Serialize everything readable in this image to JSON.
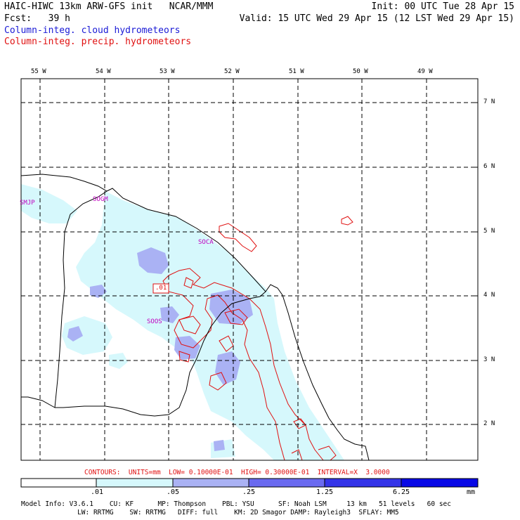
{
  "header": {
    "title": "HAIC-HIWC 13km ARW-GFS init   NCAR/MMM",
    "init": "Init: 00 UTC Tue 28 Apr 15",
    "fcst": "Fcst:   39 h",
    "valid": "Valid: 15 UTC Wed 29 Apr 15 (12 LST Wed 29 Apr 15)",
    "field1": "Column-integ. cloud hydrometeors",
    "field2": "Column-integ. precip. hydrometeors",
    "field1_color": "#1a1ad6",
    "field2_color": "#e01010"
  },
  "map": {
    "lon_labels": [
      "55 W",
      "54 W",
      "53 W",
      "52 W",
      "51 W",
      "50 W",
      "49 W"
    ],
    "lat_labels": [
      "7 N",
      "6 N",
      "5 N",
      "4 N",
      "3 N",
      "2 N"
    ],
    "stations": [
      "SMJP",
      "SOGM",
      "SOCA",
      "SOOS"
    ],
    "station_color": "#c000c0",
    "contour_label": ".01",
    "coast_color": "#000000",
    "grid_style": "dashed"
  },
  "contours_line": "CONTOURS:  UNITS=mm  LOW= 0.10000E-01  HIGH= 0.30000E-01  INTERVAL=X  3.0000",
  "colorbar": {
    "labels": [
      ".01",
      ".05",
      ".25",
      "1.25",
      "6.25"
    ],
    "units": "mm",
    "colors": [
      "#ffffff",
      "#d6f8fc",
      "#aab2f4",
      "#6a6af0",
      "#3434e8",
      "#0808e6"
    ]
  },
  "model_info": {
    "line1": "Model Info: V3.6.1    CU: KF      MP: Thompson    PBL: YSU      SF: Noah LSM     13 km   51 levels   60 sec",
    "line2": "              LW: RRTMG    SW: RRTMG   DIFF: full    KM: 2D Smagor DAMP: Rayleigh3  SFLAY: MM5"
  }
}
